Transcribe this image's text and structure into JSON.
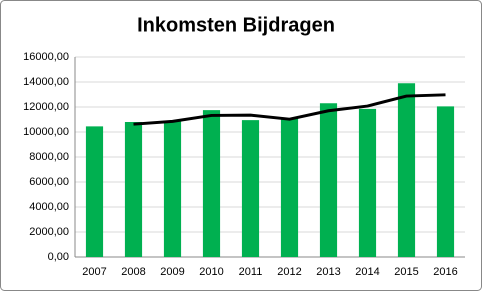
{
  "chart_data": {
    "type": "bar",
    "title": "Inkomsten Bijdragen",
    "categories": [
      "2007",
      "2008",
      "2009",
      "2010",
      "2011",
      "2012",
      "2013",
      "2014",
      "2015",
      "2016"
    ],
    "series": [
      {
        "type": "bar",
        "color": "#00b050",
        "values": [
          10450,
          10800,
          10900,
          11750,
          10950,
          11100,
          12300,
          11850,
          13900,
          12050
        ]
      },
      {
        "type": "line",
        "color": "#000000",
        "values": [
          null,
          10625,
          10850,
          11325,
          11350,
          11025,
          11700,
          12075,
          12875,
          12975
        ]
      }
    ],
    "ylim": [
      0,
      16000
    ],
    "yticks": [
      {
        "value": 0,
        "label": "0,00"
      },
      {
        "value": 2000,
        "label": "2000,00"
      },
      {
        "value": 4000,
        "label": "4000,00"
      },
      {
        "value": 6000,
        "label": "6000,00"
      },
      {
        "value": 8000,
        "label": "8000,00"
      },
      {
        "value": 10000,
        "label": "10000,00"
      },
      {
        "value": 12000,
        "label": "12000,00"
      },
      {
        "value": 14000,
        "label": "14000,00"
      },
      {
        "value": 16000,
        "label": "16000,00"
      }
    ],
    "grid": true
  }
}
